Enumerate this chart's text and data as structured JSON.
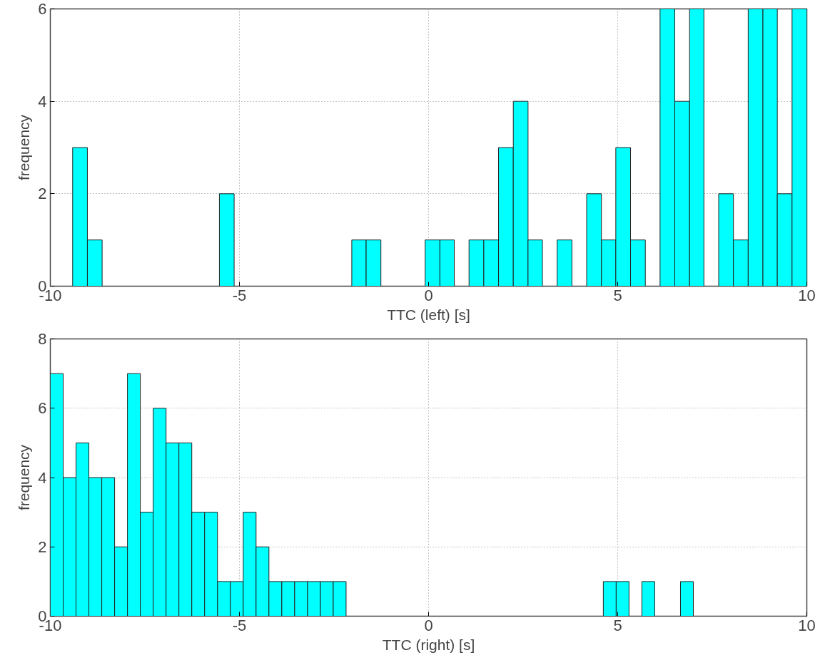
{
  "chart_data": [
    {
      "type": "histogram",
      "xlabel": "TTC (left) [s]",
      "ylabel": "frequency",
      "color": "#00ffff",
      "bins": [
        -9.41,
        -9.02,
        -8.63,
        -8.25,
        -7.86,
        -7.47,
        -7.08,
        -6.69,
        -6.3,
        -5.92,
        -5.53,
        -5.14,
        -4.75,
        -4.36,
        -3.98,
        -3.59,
        -3.2,
        -2.81,
        -2.42,
        -2.03,
        -1.65,
        -1.26,
        -0.87,
        -0.48,
        -0.09,
        0.3,
        0.68,
        1.07,
        1.46,
        1.85,
        2.24,
        2.63,
        3.01,
        3.4,
        3.79,
        4.18,
        4.57,
        4.95,
        5.34,
        5.73,
        6.12,
        6.51,
        6.9,
        7.28,
        7.67,
        8.06,
        8.45,
        8.84,
        9.22,
        9.61,
        10.0
      ],
      "values": [
        3,
        1,
        0,
        0,
        0,
        0,
        0,
        0,
        0,
        0,
        2,
        0,
        0,
        0,
        0,
        0,
        0,
        0,
        0,
        1,
        1,
        0,
        0,
        0,
        1,
        1,
        0,
        1,
        1,
        3,
        4,
        1,
        0,
        1,
        0,
        2,
        1,
        3,
        1,
        0,
        6,
        4,
        6,
        0,
        2,
        1,
        6,
        6,
        2,
        6
      ],
      "xlim": [
        -10,
        10
      ],
      "ylim": [
        0,
        6
      ],
      "xticks": [
        -10,
        -5,
        0,
        5,
        10
      ],
      "yticks": [
        0,
        2,
        4,
        6
      ],
      "grid": true
    },
    {
      "type": "histogram",
      "xlabel": "TTC (right) [s]",
      "ylabel": "frequency",
      "color": "#00ffff",
      "bins": [
        -10,
        -9.66,
        -9.32,
        -8.98,
        -8.64,
        -8.3,
        -7.96,
        -7.62,
        -7.28,
        -6.94,
        -6.6,
        -6.26,
        -5.92,
        -5.58,
        -5.24,
        -4.9,
        -4.56,
        -4.22,
        -3.88,
        -3.54,
        -3.2,
        -2.86,
        -2.52,
        -2.18,
        -1.84,
        -1.5,
        -1.16,
        -0.82,
        -0.48,
        -0.14,
        0.2,
        0.54,
        0.88,
        1.22,
        1.56,
        1.9,
        2.24,
        2.58,
        2.92,
        3.26,
        3.6,
        3.94,
        4.28,
        4.62,
        4.96,
        5.3,
        5.64,
        5.98,
        6.32,
        6.66,
        7.0
      ],
      "values": [
        7,
        4,
        5,
        4,
        4,
        2,
        7,
        3,
        6,
        5,
        5,
        3,
        3,
        1,
        1,
        3,
        2,
        1,
        1,
        1,
        1,
        1,
        1,
        0,
        0,
        0,
        0,
        0,
        0,
        0,
        0,
        0,
        0,
        0,
        0,
        0,
        0,
        0,
        0,
        0,
        0,
        0,
        0,
        1,
        1,
        0,
        1,
        0,
        0,
        1
      ],
      "xlim": [
        -10,
        10
      ],
      "ylim": [
        0,
        8
      ],
      "xticks": [
        -10,
        -5,
        0,
        5,
        10
      ],
      "yticks": [
        0,
        2,
        4,
        6,
        8
      ],
      "grid": true
    }
  ]
}
